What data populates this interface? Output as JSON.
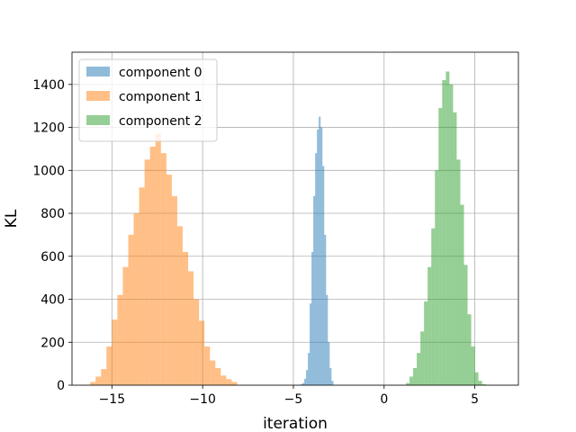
{
  "chart_data": {
    "type": "histogram",
    "title": "",
    "xlabel": "iteration",
    "ylabel": "KL",
    "xlim": [
      -17.2,
      7.4
    ],
    "ylim": [
      0,
      1550
    ],
    "xticks": [
      -15,
      -10,
      -5,
      0,
      5
    ],
    "xtick_labels": [
      "−15",
      "−10",
      "−5",
      "0",
      "5"
    ],
    "yticks": [
      0,
      200,
      400,
      600,
      800,
      1000,
      1200,
      1400
    ],
    "ytick_labels": [
      "0",
      "200",
      "400",
      "600",
      "800",
      "1000",
      "1200",
      "1400"
    ],
    "grid": true,
    "legend_position": "top-left",
    "bar_opacity": 0.5,
    "series": [
      {
        "name": "component 0",
        "color": "#1f77b4",
        "bin_start": -4.6,
        "bin_width": 0.1,
        "counts": [
          5,
          10,
          30,
          70,
          150,
          380,
          620,
          880,
          1080,
          1190,
          1250,
          1200,
          1020,
          700,
          420,
          200,
          80,
          20
        ]
      },
      {
        "name": "component 1",
        "color": "#ff7f0e",
        "bin_start": -16.2,
        "bin_width": 0.3,
        "counts": [
          15,
          40,
          75,
          180,
          305,
          420,
          550,
          700,
          800,
          920,
          1050,
          1110,
          1170,
          1080,
          980,
          880,
          740,
          620,
          530,
          400,
          300,
          180,
          115,
          80,
          45,
          28,
          15
        ]
      },
      {
        "name": "component 2",
        "color": "#2ca02c",
        "bin_start": 1.2,
        "bin_width": 0.2,
        "counts": [
          10,
          40,
          80,
          150,
          250,
          390,
          550,
          730,
          1000,
          1290,
          1420,
          1460,
          1400,
          1270,
          1050,
          840,
          560,
          330,
          180,
          60,
          20,
          5
        ]
      }
    ]
  }
}
